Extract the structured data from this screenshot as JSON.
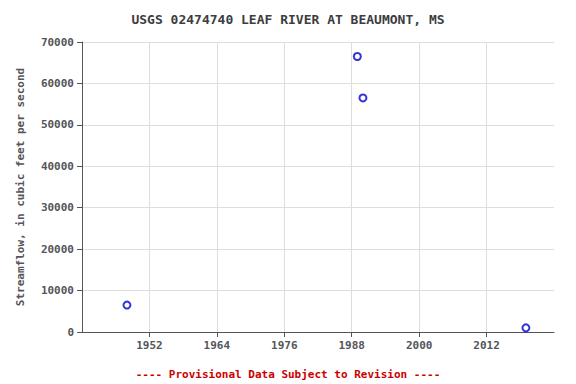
{
  "chart_data": {
    "type": "scatter",
    "title": "USGS 02474740 LEAF RIVER AT BEAUMONT, MS",
    "ylabel": "Streamflow, in cubic feet per second",
    "x": [
      1948,
      1989,
      1990,
      2019
    ],
    "values": [
      6500,
      66500,
      56500,
      1000
    ],
    "color": "#0000CC",
    "marker": "circle",
    "xlim": [
      1940,
      2024
    ],
    "xticks": [
      1952,
      1964,
      1976,
      1988,
      2000,
      2012
    ],
    "ylim": [
      0,
      70000
    ],
    "yticks": [
      0,
      10000,
      20000,
      30000,
      40000,
      50000,
      60000,
      70000
    ],
    "grid": true,
    "annotations": [
      {
        "text": "---- Provisional Data Subject to Revision ----",
        "color": "#CC0000"
      }
    ]
  }
}
